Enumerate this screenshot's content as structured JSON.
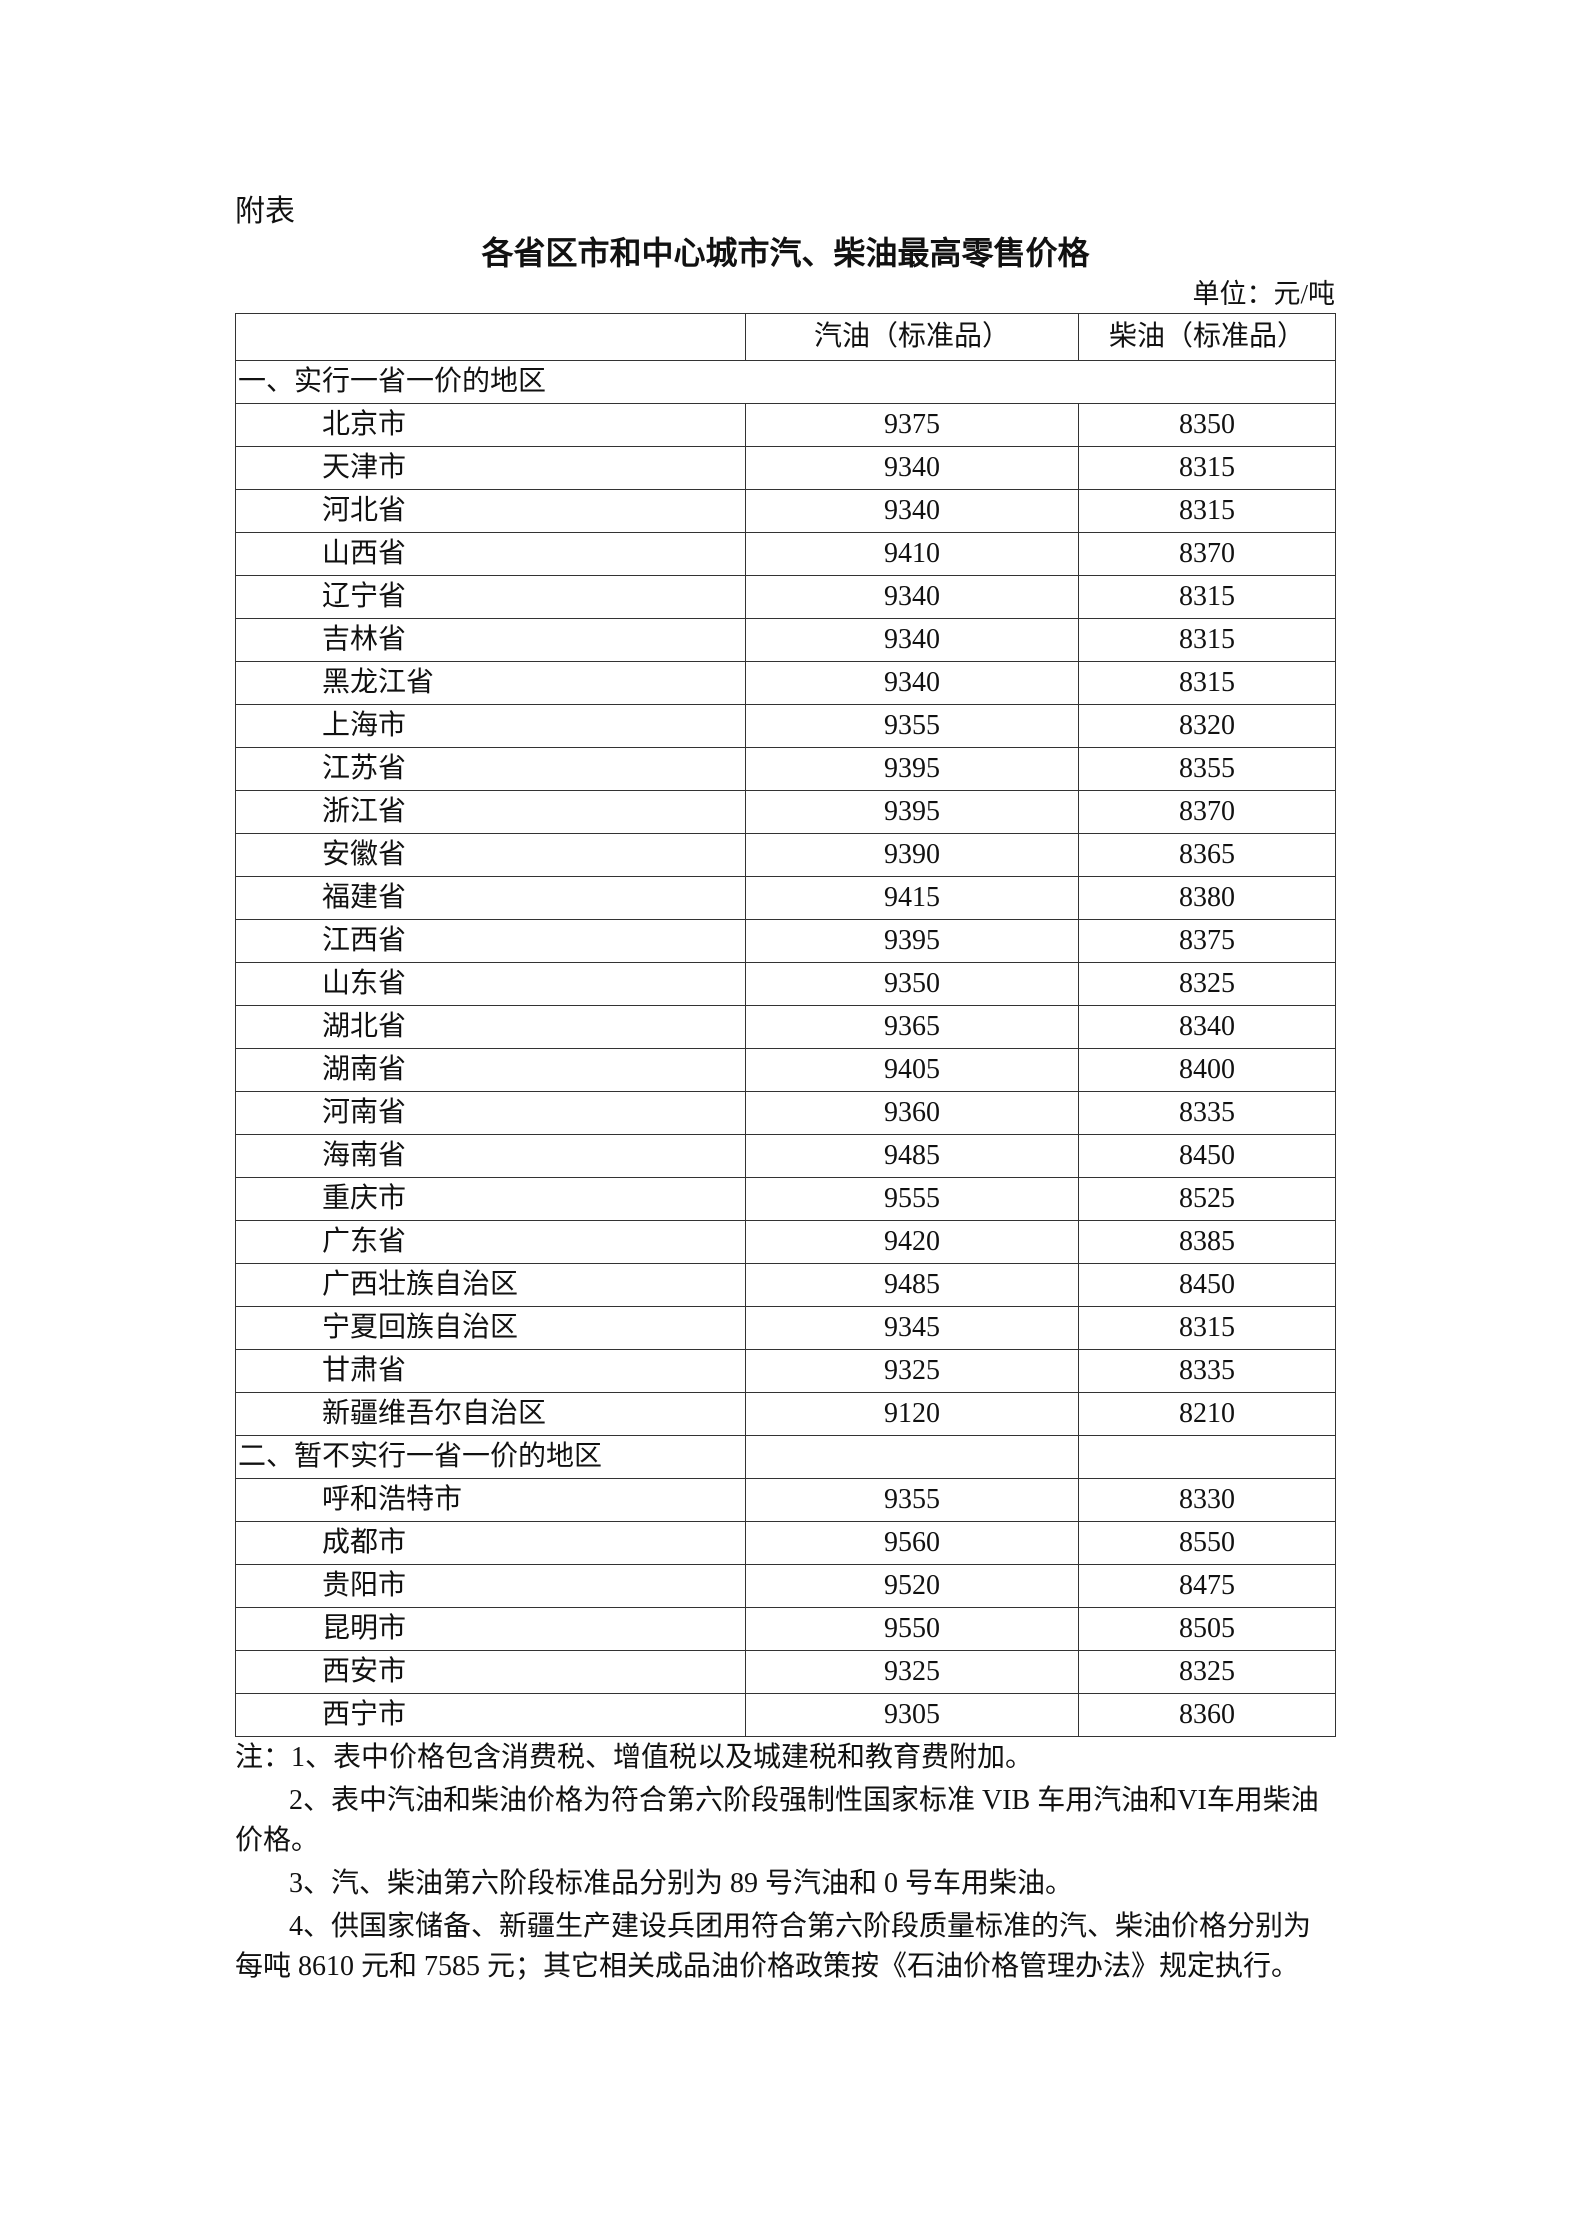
{
  "attachment_label": "附表",
  "title": "各省区市和中心城市汽、柴油最高零售价格",
  "unit": "单位：元/吨",
  "table": {
    "headers": [
      "",
      "汽油（标准品）",
      "柴油（标准品）"
    ],
    "sections": [
      {
        "label": "一、实行一省一价的地区",
        "rows": [
          [
            "北京市",
            "9375",
            "8350"
          ],
          [
            "天津市",
            "9340",
            "8315"
          ],
          [
            "河北省",
            "9340",
            "8315"
          ],
          [
            "山西省",
            "9410",
            "8370"
          ],
          [
            "辽宁省",
            "9340",
            "8315"
          ],
          [
            "吉林省",
            "9340",
            "8315"
          ],
          [
            "黑龙江省",
            "9340",
            "8315"
          ],
          [
            "上海市",
            "9355",
            "8320"
          ],
          [
            "江苏省",
            "9395",
            "8355"
          ],
          [
            "浙江省",
            "9395",
            "8370"
          ],
          [
            "安徽省",
            "9390",
            "8365"
          ],
          [
            "福建省",
            "9415",
            "8380"
          ],
          [
            "江西省",
            "9395",
            "8375"
          ],
          [
            "山东省",
            "9350",
            "8325"
          ],
          [
            "湖北省",
            "9365",
            "8340"
          ],
          [
            "湖南省",
            "9405",
            "8400"
          ],
          [
            "河南省",
            "9360",
            "8335"
          ],
          [
            "海南省",
            "9485",
            "8450"
          ],
          [
            "重庆市",
            "9555",
            "8525"
          ],
          [
            "广东省",
            "9420",
            "8385"
          ],
          [
            "广西壮族自治区",
            "9485",
            "8450"
          ],
          [
            "宁夏回族自治区",
            "9345",
            "8315"
          ],
          [
            "甘肃省",
            "9325",
            "8335"
          ],
          [
            "新疆维吾尔自治区",
            "9120",
            "8210"
          ]
        ]
      },
      {
        "label": "二、暂不实行一省一价的地区",
        "rows": [
          [
            "呼和浩特市",
            "9355",
            "8330"
          ],
          [
            "成都市",
            "9560",
            "8550"
          ],
          [
            "贵阳市",
            "9520",
            "8475"
          ],
          [
            "昆明市",
            "9550",
            "8505"
          ],
          [
            "西安市",
            "9325",
            "8325"
          ],
          [
            "西宁市",
            "9305",
            "8360"
          ]
        ]
      }
    ]
  },
  "notes": [
    "注：1、表中价格包含消费税、增值税以及城建税和教育费附加。",
    "2、表中汽油和柴油价格为符合第六阶段强制性国家标准 VIB 车用汽油和VI车用柴油价格。",
    "3、汽、柴油第六阶段标准品分别为 89 号汽油和 0 号车用柴油。",
    "4、供国家储备、新疆生产建设兵团用符合第六阶段质量标准的汽、柴油价格分别为每吨 8610 元和 7585 元；其它相关成品油价格政策按《石油价格管理办法》规定执行。"
  ]
}
